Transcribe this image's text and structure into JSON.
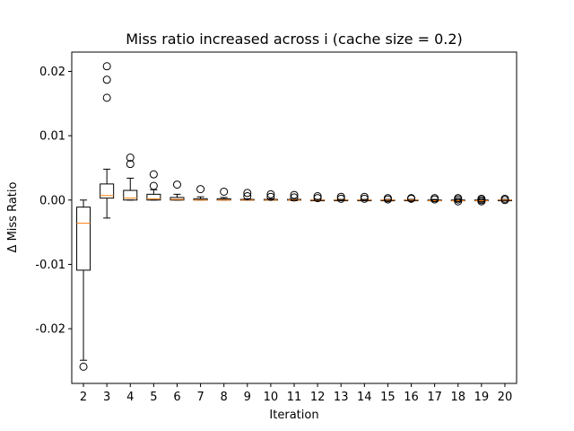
{
  "chart_data": {
    "type": "box",
    "title": "Miss ratio increased across i (cache size = 0.2)",
    "xlabel": "Iteration",
    "ylabel": "Δ Miss Ratio",
    "ylim": [
      -0.0285,
      0.023
    ],
    "yticks": [
      -0.02,
      -0.01,
      0.0,
      0.01,
      0.02
    ],
    "ytick_labels": [
      "-0.02",
      "-0.01",
      "0.00",
      "0.01",
      "0.02"
    ],
    "grid": false,
    "colors": {
      "box": "#000000",
      "median": "#ff7f0e",
      "axes": "#000000",
      "background": "#ffffff"
    },
    "categories": [
      "2",
      "3",
      "4",
      "5",
      "6",
      "7",
      "8",
      "9",
      "10",
      "11",
      "12",
      "13",
      "14",
      "15",
      "16",
      "17",
      "18",
      "19",
      "20"
    ],
    "boxes": [
      {
        "x": "2",
        "whislo": -0.0249,
        "q1": -0.0109,
        "med": -0.0036,
        "q3": -0.0011,
        "whishi": 0.0,
        "fliers": [
          -0.0259
        ]
      },
      {
        "x": "3",
        "whislo": -0.0028,
        "q1": 0.0003,
        "med": 0.0007,
        "q3": 0.0025,
        "whishi": 0.0048,
        "fliers": [
          0.0159,
          0.0187,
          0.0208
        ]
      },
      {
        "x": "4",
        "whislo": 0.0,
        "q1": 0.0,
        "med": 0.0003,
        "q3": 0.0015,
        "whishi": 0.0034,
        "fliers": [
          0.0056,
          0.0066
        ]
      },
      {
        "x": "5",
        "whislo": 0.0,
        "q1": 0.0,
        "med": 0.0002,
        "q3": 0.0009,
        "whishi": 0.0016,
        "fliers": [
          0.0022,
          0.004
        ]
      },
      {
        "x": "6",
        "whislo": 0.0,
        "q1": 0.0,
        "med": 0.0001,
        "q3": 0.0004,
        "whishi": 0.0009,
        "fliers": [
          0.0024
        ]
      },
      {
        "x": "7",
        "whislo": 0.0,
        "q1": 0.0,
        "med": 0.0,
        "q3": 0.0002,
        "whishi": 0.0005,
        "fliers": [
          0.0017
        ]
      },
      {
        "x": "8",
        "whislo": 0.0,
        "q1": 0.0,
        "med": 0.0,
        "q3": 0.0002,
        "whishi": 0.0004,
        "fliers": [
          0.0013
        ]
      },
      {
        "x": "9",
        "whislo": 0.0,
        "q1": 0.0,
        "med": 0.0,
        "q3": 0.0001,
        "whishi": 0.0002,
        "fliers": [
          0.0006,
          0.0011
        ]
      },
      {
        "x": "10",
        "whislo": 0.0,
        "q1": 0.0,
        "med": 0.0,
        "q3": 0.0001,
        "whishi": 0.0002,
        "fliers": [
          0.0005,
          0.0009
        ]
      },
      {
        "x": "11",
        "whislo": -0.0001,
        "q1": 0.0,
        "med": 0.0,
        "q3": 0.0001,
        "whishi": 0.0001,
        "fliers": [
          0.0004,
          0.0008
        ]
      },
      {
        "x": "12",
        "whislo": -0.0001,
        "q1": 0.0,
        "med": 0.0,
        "q3": 0.0,
        "whishi": 0.0001,
        "fliers": [
          0.0003,
          0.0006
        ]
      },
      {
        "x": "13",
        "whislo": -0.0001,
        "q1": 0.0,
        "med": 0.0,
        "q3": 0.0,
        "whishi": 0.0001,
        "fliers": [
          0.0002,
          0.0005
        ]
      },
      {
        "x": "14",
        "whislo": -0.0001,
        "q1": -0.0001,
        "med": 0.0,
        "q3": 0.0,
        "whishi": 0.0001,
        "fliers": [
          0.0002,
          0.0005
        ]
      },
      {
        "x": "15",
        "whislo": -0.0001,
        "q1": -0.0001,
        "med": 0.0,
        "q3": 0.0,
        "whishi": 0.0001,
        "fliers": [
          0.0001,
          0.0003
        ]
      },
      {
        "x": "16",
        "whislo": -0.0001,
        "q1": -0.0001,
        "med": 0.0,
        "q3": 0.0,
        "whishi": 0.0001,
        "fliers": [
          0.0002,
          0.0003
        ]
      },
      {
        "x": "17",
        "whislo": -0.0002,
        "q1": -0.0001,
        "med": -0.0001,
        "q3": 0.0,
        "whishi": 0.0001,
        "fliers": [
          0.0001,
          0.0003
        ]
      },
      {
        "x": "18",
        "whislo": -0.0002,
        "q1": -0.0001,
        "med": -0.0001,
        "q3": 0.0,
        "whishi": 0.0001,
        "fliers": [
          -0.0002,
          0.0001,
          0.0003
        ]
      },
      {
        "x": "19",
        "whislo": -0.0002,
        "q1": -0.0001,
        "med": -0.0001,
        "q3": 0.0,
        "whishi": 0.0001,
        "fliers": [
          -0.0002,
          0.0,
          0.0002
        ]
      },
      {
        "x": "20",
        "whislo": -0.0001,
        "q1": -0.0001,
        "med": 0.0,
        "q3": 0.0,
        "whishi": 0.0001,
        "fliers": [
          0.0,
          0.0002
        ]
      }
    ]
  }
}
